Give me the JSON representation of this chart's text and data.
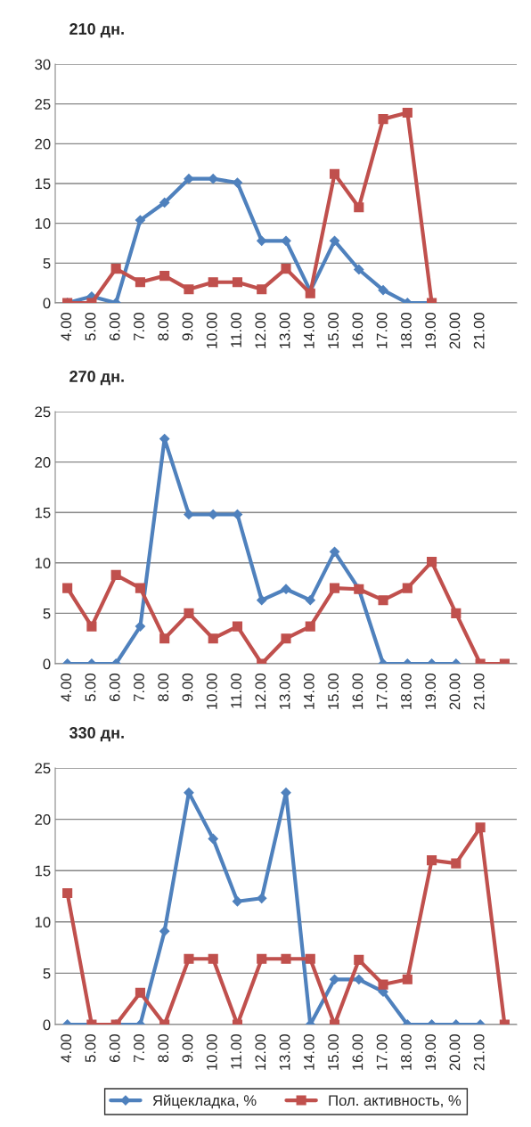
{
  "chart_data": [
    {
      "type": "line",
      "title": "210 дн.",
      "categories": [
        "4.00",
        "5.00",
        "6.00",
        "7.00",
        "8.00",
        "9.00",
        "10.00",
        "11.00",
        "12.00",
        "13.00",
        "14.00",
        "15.00",
        "16.00",
        "17.00",
        "18.00",
        "19.00",
        "20.00",
        "21.00",
        null
      ],
      "series": [
        {
          "color": "#4f81bd",
          "marker": "diamond",
          "values": [
            0,
            0.8,
            0,
            10.4,
            12.6,
            15.6,
            15.6,
            15.1,
            7.8,
            7.8,
            1.5,
            7.8,
            4.2,
            1.6,
            0,
            0,
            null,
            null,
            null
          ]
        },
        {
          "color": "#c0504d",
          "marker": "square",
          "values": [
            0,
            0,
            4.3,
            2.6,
            3.4,
            1.7,
            2.6,
            2.6,
            1.7,
            4.3,
            1.2,
            16.2,
            12.0,
            23.1,
            23.9,
            0,
            null,
            null,
            null
          ]
        }
      ],
      "ylim": [
        0,
        30
      ],
      "yticks": [
        0,
        5,
        10,
        15,
        20,
        25,
        30
      ],
      "grid": "y",
      "legend": false
    },
    {
      "type": "line",
      "title": "270 дн.",
      "categories": [
        "4.00",
        "5.00",
        "6.00",
        "7.00",
        "8.00",
        "9.00",
        "10.00",
        "11.00",
        "12.00",
        "13.00",
        "14.00",
        "15.00",
        "16.00",
        "17.00",
        "18.00",
        "19.00",
        "20.00",
        "21.00",
        null
      ],
      "series": [
        {
          "color": "#4f81bd",
          "marker": "diamond",
          "values": [
            0,
            0,
            0,
            3.7,
            22.3,
            14.8,
            14.8,
            14.8,
            6.3,
            7.4,
            6.3,
            11.1,
            7.4,
            0,
            0,
            0,
            0,
            null,
            null
          ]
        },
        {
          "color": "#c0504d",
          "marker": "square",
          "values": [
            7.5,
            3.7,
            8.8,
            7.5,
            2.5,
            5,
            2.5,
            3.7,
            0,
            2.5,
            3.7,
            7.5,
            7.4,
            6.3,
            7.5,
            10.1,
            5,
            0,
            0
          ]
        }
      ],
      "ylim": [
        0,
        25
      ],
      "yticks": [
        0,
        5,
        10,
        15,
        20,
        25
      ],
      "grid": "y",
      "legend": false
    },
    {
      "type": "line",
      "title": "330 дн.",
      "categories": [
        "4.00",
        "5.00",
        "6.00",
        "7.00",
        "8.00",
        "9.00",
        "10.00",
        "11.00",
        "12.00",
        "13.00",
        "14.00",
        "15.00",
        "16.00",
        "17.00",
        "18.00",
        "19.00",
        "20.00",
        "21.00",
        null
      ],
      "series": [
        {
          "name": "Яйцекладка, %",
          "color": "#4f81bd",
          "marker": "diamond",
          "values": [
            0,
            0,
            0,
            0,
            9.1,
            22.6,
            18.1,
            12,
            12.3,
            22.6,
            0,
            4.4,
            4.4,
            3.2,
            0,
            0,
            0,
            0,
            null
          ]
        },
        {
          "name": "Пол. активность, %",
          "color": "#c0504d",
          "marker": "square",
          "values": [
            12.8,
            0,
            0,
            3.1,
            0,
            6.4,
            6.4,
            0,
            6.4,
            6.4,
            6.4,
            0,
            6.3,
            3.9,
            4.4,
            16,
            15.7,
            19.2,
            0
          ]
        }
      ],
      "ylim": [
        0,
        25
      ],
      "yticks": [
        0,
        5,
        10,
        15,
        20,
        25
      ],
      "grid": "y",
      "legend": "bottom"
    }
  ]
}
